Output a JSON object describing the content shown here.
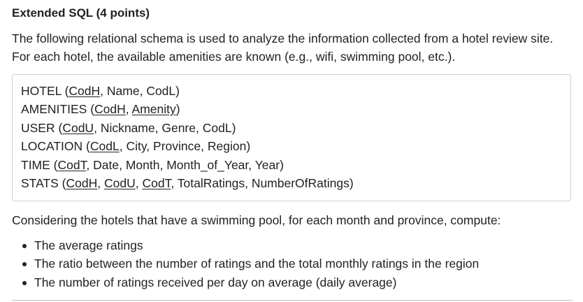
{
  "title": "Extended SQL (4 points)",
  "intro": "The following relational schema is used to analyze the information collected from a hotel review site. For each hotel, the available amenities are known (e.g., wifi, swimming pool, etc.).",
  "schema": [
    {
      "table": "HOTEL",
      "keys": [
        "CodH"
      ],
      "attrs": [
        "Name",
        "CodL"
      ]
    },
    {
      "table": "AMENITIES",
      "keys": [
        "CodH",
        "Amenity"
      ],
      "attrs": []
    },
    {
      "table": "USER",
      "keys": [
        "CodU"
      ],
      "attrs": [
        "Nickname",
        "Genre",
        "CodL"
      ]
    },
    {
      "table": "LOCATION",
      "keys": [
        "CodL"
      ],
      "attrs": [
        "City",
        "Province",
        "Region"
      ]
    },
    {
      "table": "TIME",
      "keys": [
        "CodT"
      ],
      "attrs": [
        "Date",
        "Month",
        "Month_of_Year",
        "Year"
      ]
    },
    {
      "table": "STATS",
      "keys": [
        "CodH",
        "CodU",
        "CodT"
      ],
      "attrs": [
        "TotalRatings",
        "NumberOfRatings"
      ]
    }
  ],
  "question": "Considering the hotels that have a swimming pool, for each month and province, compute:",
  "tasks": [
    "The average ratings",
    "The ratio between the number of ratings and the total monthly ratings in the region",
    "The number of ratings received per day on average (daily average)"
  ]
}
